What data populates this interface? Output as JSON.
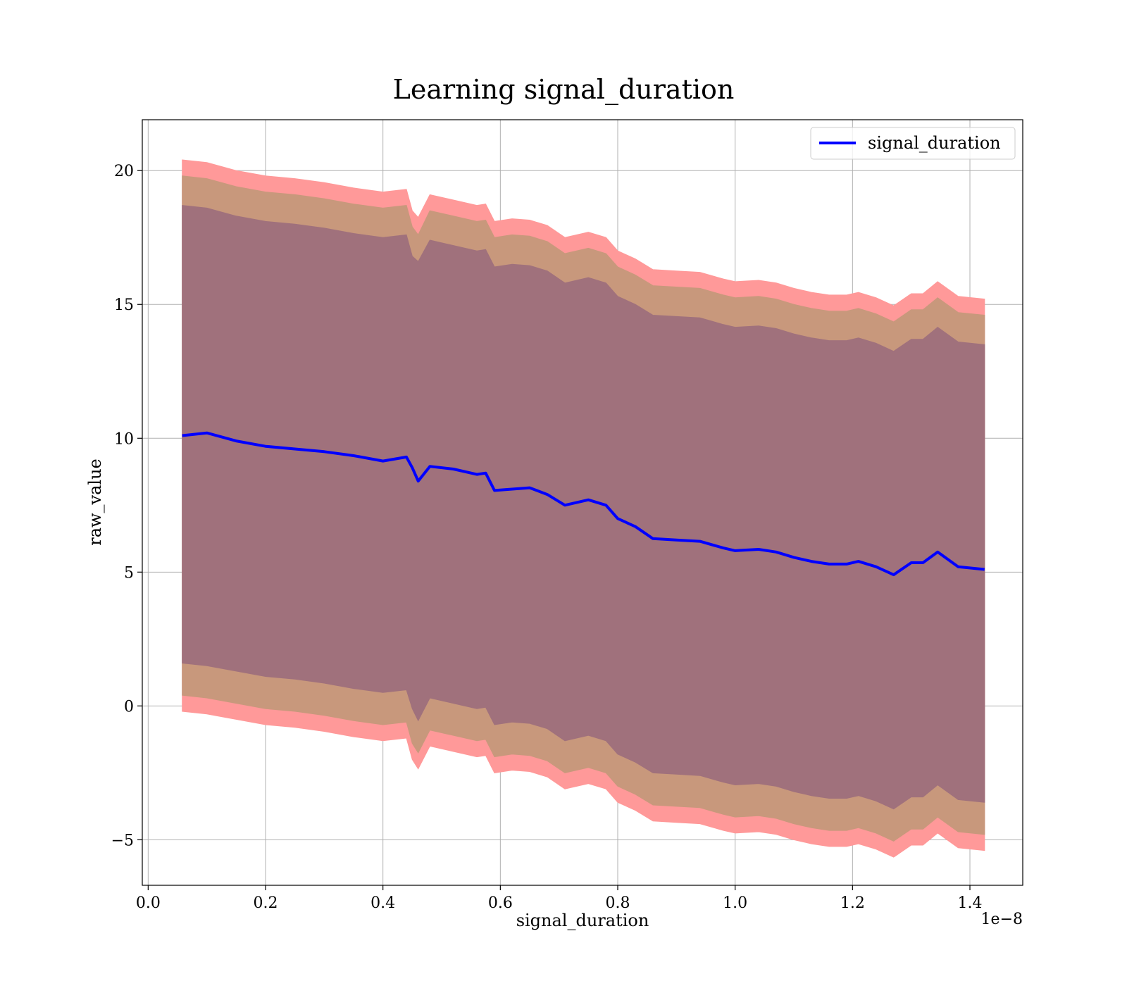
{
  "chart_data": {
    "type": "area",
    "title": "Learning signal_duration",
    "xlabel": "signal_duration",
    "ylabel": "raw_value",
    "x_offset_label": "1e−8",
    "xlim": [
      -0.01,
      1.49
    ],
    "ylim": [
      -6.7,
      21.9
    ],
    "x_ticks": [
      0.0,
      0.2,
      0.4,
      0.6,
      0.8,
      1.0,
      1.2,
      1.4
    ],
    "x_tick_labels": [
      "0.0",
      "0.2",
      "0.4",
      "0.6",
      "0.8",
      "1.0",
      "1.2",
      "1.4"
    ],
    "y_ticks": [
      -5,
      0,
      5,
      10,
      15,
      20
    ],
    "y_tick_labels": [
      "−5",
      "0",
      "5",
      "10",
      "15",
      "20"
    ],
    "grid": true,
    "legend": {
      "position": "top-right",
      "entries": [
        "signal_duration"
      ]
    },
    "colors": {
      "line": "#0000ff",
      "band_outer": "#ff9999",
      "band_middle": "#c8987c",
      "band_inner": "#a0717c"
    },
    "x": [
      0.058,
      0.1,
      0.15,
      0.2,
      0.25,
      0.3,
      0.35,
      0.4,
      0.44,
      0.45,
      0.46,
      0.48,
      0.52,
      0.56,
      0.575,
      0.59,
      0.62,
      0.65,
      0.68,
      0.71,
      0.75,
      0.78,
      0.8,
      0.83,
      0.86,
      0.9,
      0.94,
      0.98,
      1.0,
      1.04,
      1.07,
      1.1,
      1.13,
      1.16,
      1.19,
      1.21,
      1.24,
      1.27,
      1.3,
      1.32,
      1.345,
      1.38,
      1.425
    ],
    "series": [
      {
        "name": "signal_duration",
        "values": [
          10.1,
          10.2,
          9.9,
          9.7,
          9.6,
          9.5,
          9.35,
          9.15,
          9.3,
          8.9,
          8.4,
          8.95,
          8.85,
          8.65,
          8.7,
          8.05,
          8.1,
          8.15,
          7.9,
          7.5,
          7.7,
          7.5,
          7.0,
          6.7,
          6.25,
          6.2,
          6.15,
          5.9,
          5.8,
          5.85,
          5.75,
          5.55,
          5.4,
          5.3,
          5.3,
          5.4,
          5.2,
          4.9,
          5.35,
          5.35,
          5.75,
          5.2,
          5.1
        ]
      }
    ],
    "bands": {
      "outer_upper": [
        20.4,
        20.3,
        20.0,
        19.8,
        19.7,
        19.55,
        19.35,
        19.2,
        19.3,
        18.5,
        18.25,
        19.1,
        18.9,
        18.7,
        18.75,
        18.1,
        18.2,
        18.15,
        17.95,
        17.5,
        17.7,
        17.5,
        17.0,
        16.7,
        16.3,
        16.25,
        16.2,
        15.95,
        15.85,
        15.9,
        15.8,
        15.6,
        15.45,
        15.35,
        15.35,
        15.45,
        15.25,
        14.95,
        15.4,
        15.4,
        15.85,
        15.3,
        15.2
      ],
      "middle_upper": [
        19.8,
        19.7,
        19.4,
        19.2,
        19.1,
        18.95,
        18.75,
        18.6,
        18.7,
        17.9,
        17.6,
        18.5,
        18.3,
        18.1,
        18.15,
        17.5,
        17.6,
        17.55,
        17.35,
        16.9,
        17.1,
        16.9,
        16.4,
        16.1,
        15.7,
        15.65,
        15.6,
        15.35,
        15.25,
        15.3,
        15.2,
        15.0,
        14.85,
        14.75,
        14.75,
        14.85,
        14.65,
        14.35,
        14.8,
        14.8,
        15.25,
        14.7,
        14.6
      ],
      "inner_upper": [
        18.7,
        18.6,
        18.3,
        18.1,
        18.0,
        17.85,
        17.65,
        17.5,
        17.6,
        16.8,
        16.6,
        17.4,
        17.2,
        17.0,
        17.05,
        16.4,
        16.5,
        16.45,
        16.25,
        15.8,
        16.0,
        15.8,
        15.3,
        15.0,
        14.6,
        14.55,
        14.5,
        14.25,
        14.15,
        14.2,
        14.1,
        13.9,
        13.75,
        13.65,
        13.65,
        13.75,
        13.55,
        13.25,
        13.7,
        13.7,
        14.15,
        13.6,
        13.5
      ],
      "inner_lower": [
        1.6,
        1.5,
        1.3,
        1.1,
        1.0,
        0.85,
        0.65,
        0.5,
        0.6,
        -0.1,
        -0.55,
        0.3,
        0.1,
        -0.1,
        -0.05,
        -0.7,
        -0.6,
        -0.65,
        -0.85,
        -1.3,
        -1.1,
        -1.3,
        -1.8,
        -2.1,
        -2.5,
        -2.55,
        -2.6,
        -2.85,
        -2.95,
        -2.9,
        -3.0,
        -3.2,
        -3.35,
        -3.45,
        -3.45,
        -3.35,
        -3.55,
        -3.85,
        -3.4,
        -3.4,
        -2.95,
        -3.5,
        -3.6
      ],
      "middle_lower": [
        0.4,
        0.3,
        0.1,
        -0.1,
        -0.2,
        -0.35,
        -0.55,
        -0.7,
        -0.6,
        -1.4,
        -1.75,
        -0.9,
        -1.1,
        -1.3,
        -1.25,
        -1.9,
        -1.8,
        -1.85,
        -2.05,
        -2.5,
        -2.3,
        -2.5,
        -3.0,
        -3.3,
        -3.7,
        -3.75,
        -3.8,
        -4.05,
        -4.15,
        -4.1,
        -4.2,
        -4.4,
        -4.55,
        -4.65,
        -4.65,
        -4.55,
        -4.75,
        -5.05,
        -4.6,
        -4.6,
        -4.15,
        -4.7,
        -4.8
      ],
      "outer_lower": [
        -0.2,
        -0.3,
        -0.5,
        -0.7,
        -0.8,
        -0.95,
        -1.15,
        -1.3,
        -1.2,
        -2.0,
        -2.35,
        -1.5,
        -1.7,
        -1.9,
        -1.85,
        -2.5,
        -2.4,
        -2.45,
        -2.65,
        -3.1,
        -2.9,
        -3.1,
        -3.6,
        -3.9,
        -4.3,
        -4.35,
        -4.4,
        -4.65,
        -4.75,
        -4.7,
        -4.8,
        -5.0,
        -5.15,
        -5.25,
        -5.25,
        -5.15,
        -5.35,
        -5.65,
        -5.2,
        -5.2,
        -4.75,
        -5.3,
        -5.4
      ]
    }
  }
}
